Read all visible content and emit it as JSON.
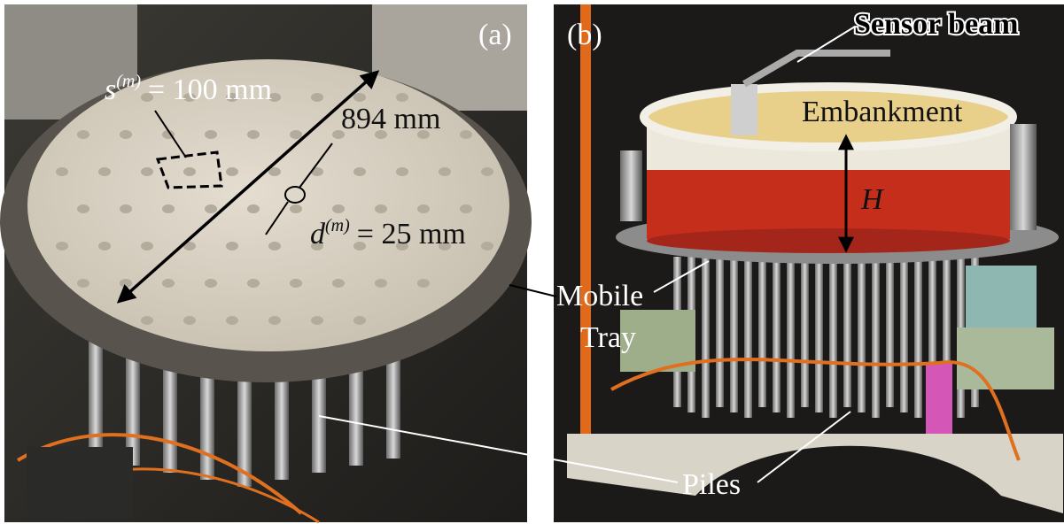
{
  "panels": [
    {
      "tag": "(a)",
      "annotations": {
        "spacing": {
          "symbol": "s",
          "superscript": "(m)",
          "text": "= 100 mm"
        },
        "plate_diameter": "894 mm",
        "pile_diameter": {
          "symbol": "d",
          "superscript": "(m)",
          "text": "= 25 mm"
        }
      }
    },
    {
      "tag": "(b)",
      "annotations": {
        "sensor_beam": "Sensor beam",
        "embankment": "Embankment",
        "height": "H"
      }
    }
  ],
  "shared_labels": {
    "mobile_tray": [
      "Mobile",
      "Tray"
    ],
    "piles": "Piles"
  }
}
